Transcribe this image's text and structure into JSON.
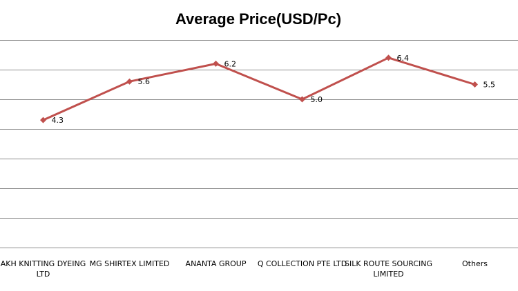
{
  "chart_data": {
    "type": "line",
    "title": "Average Price(USD/Pc)",
    "categories": [
      "AKH KNITTING  DYEING LTD",
      "MG SHIRTEX  LIMITED",
      "ANANTA GROUP",
      "Q COLLECTION  PTE LTD",
      "SILK ROUTE  SOURCING LIMITED",
      "Others"
    ],
    "category_lines": [
      [
        "AKH KNITTING  DYEING",
        "LTD"
      ],
      [
        "MG SHIRTEX  LIMITED"
      ],
      [
        "ANANTA GROUP"
      ],
      [
        "Q COLLECTION  PTE LTD"
      ],
      [
        "SILK ROUTE  SOURCING",
        "LIMITED"
      ],
      [
        "Others"
      ]
    ],
    "values": [
      4.3,
      5.6,
      6.2,
      5.0,
      6.4,
      5.5
    ],
    "data_labels": [
      "4.3",
      "5.6",
      "6.2",
      "5.0",
      "6.4",
      "5.5"
    ],
    "ylim": [
      0,
      7
    ],
    "grid": true,
    "legend": "none",
    "series_color": "#c0504d"
  }
}
